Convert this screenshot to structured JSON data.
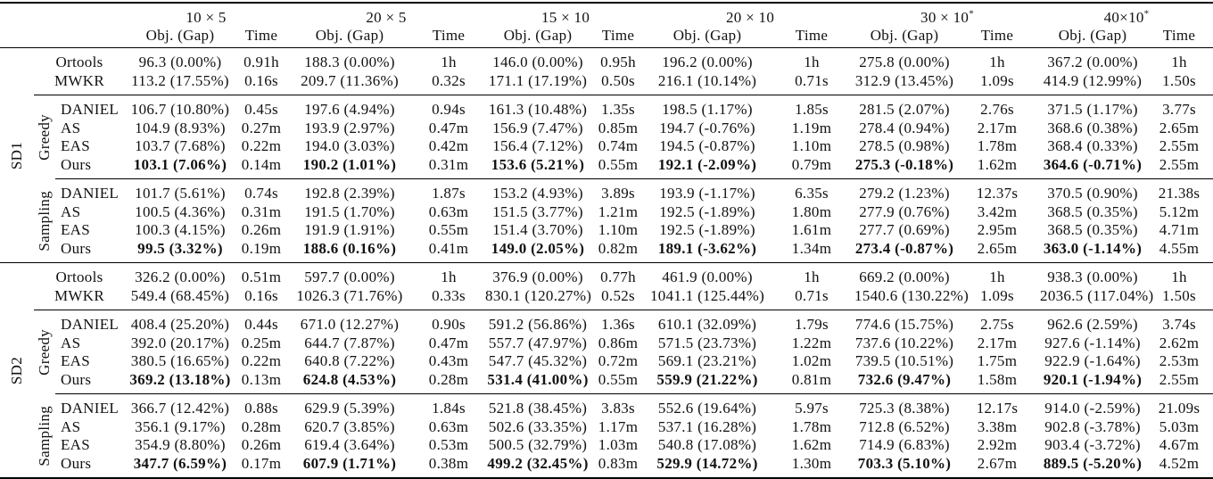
{
  "header": {
    "sizes": [
      {
        "label": "10 × 5",
        "star": ""
      },
      {
        "label": "20 × 5",
        "star": ""
      },
      {
        "label": "15 × 10",
        "star": ""
      },
      {
        "label": "20 × 10",
        "star": ""
      },
      {
        "label": "30 × 10",
        "star": "*"
      },
      {
        "label": "40×10",
        "star": "*"
      }
    ],
    "obj_label": "Obj. (Gap)",
    "time_label": "Time"
  },
  "groups_labels": {
    "greedy": "Greedy",
    "sampling": "Sampling"
  },
  "sections": [
    {
      "label": "SD1",
      "baselines": [
        {
          "method": "Ortools",
          "cells": [
            [
              "96.3 (0.00%)",
              "0.91h"
            ],
            [
              "188.3 (0.00%)",
              "1h"
            ],
            [
              "146.0 (0.00%)",
              "0.95h"
            ],
            [
              "196.2 (0.00%)",
              "1h"
            ],
            [
              "275.8 (0.00%)",
              "1h"
            ],
            [
              "367.2 (0.00%)",
              "1h"
            ]
          ]
        },
        {
          "method": "MWKR",
          "cells": [
            [
              "113.2 (17.55%)",
              "0.16s"
            ],
            [
              "209.7 (11.36%)",
              "0.32s"
            ],
            [
              "171.1 (17.19%)",
              "0.50s"
            ],
            [
              "216.1 (10.14%)",
              "0.71s"
            ],
            [
              "312.9 (13.45%)",
              "1.09s"
            ],
            [
              "414.9 (12.99%)",
              "1.50s"
            ]
          ]
        }
      ],
      "greedy": [
        {
          "method": "DANIEL",
          "cells": [
            [
              "106.7 (10.80%)",
              "0.45s"
            ],
            [
              "197.6 (4.94%)",
              "0.94s"
            ],
            [
              "161.3 (10.48%)",
              "1.35s"
            ],
            [
              "198.5 (1.17%)",
              "1.85s"
            ],
            [
              "281.5 (2.07%)",
              "2.76s"
            ],
            [
              "371.5 (1.17%)",
              "3.77s"
            ]
          ]
        },
        {
          "method": "AS",
          "cells": [
            [
              "104.9 (8.93%)",
              "0.27m"
            ],
            [
              "193.9 (2.97%)",
              "0.47m"
            ],
            [
              "156.9 (7.47%)",
              "0.85m"
            ],
            [
              "194.7 (-0.76%)",
              "1.19m"
            ],
            [
              "278.4 (0.94%)",
              "2.17m"
            ],
            [
              "368.6 (0.38%)",
              "2.65m"
            ]
          ]
        },
        {
          "method": "EAS",
          "cells": [
            [
              "103.7 (7.68%)",
              "0.22m"
            ],
            [
              "194.0 (3.03%)",
              "0.42m"
            ],
            [
              "156.4 (7.12%)",
              "0.74m"
            ],
            [
              "194.5 (-0.87%)",
              "1.10m"
            ],
            [
              "278.5 (0.98%)",
              "1.78m"
            ],
            [
              "368.4 (0.33%)",
              "2.55m"
            ]
          ]
        },
        {
          "method": "Ours",
          "bold": true,
          "cells": [
            [
              "103.1 (7.06%)",
              "0.14m"
            ],
            [
              "190.2 (1.01%)",
              "0.31m"
            ],
            [
              "153.6 (5.21%)",
              "0.55m"
            ],
            [
              "192.1 (-2.09%)",
              "0.79m"
            ],
            [
              "275.3 (-0.18%)",
              "1.62m"
            ],
            [
              "364.6 (-0.71%)",
              "2.55m"
            ]
          ]
        }
      ],
      "sampling": [
        {
          "method": "DANIEL",
          "cells": [
            [
              "101.7 (5.61%)",
              "0.74s"
            ],
            [
              "192.8 (2.39%)",
              "1.87s"
            ],
            [
              "153.2 (4.93%)",
              "3.89s"
            ],
            [
              "193.9 (-1.17%)",
              "6.35s"
            ],
            [
              "279.2 (1.23%)",
              "12.37s"
            ],
            [
              "370.5 (0.90%)",
              "21.38s"
            ]
          ]
        },
        {
          "method": "AS",
          "cells": [
            [
              "100.5 (4.36%)",
              "0.31m"
            ],
            [
              "191.5 (1.70%)",
              "0.63m"
            ],
            [
              "151.5 (3.77%)",
              "1.21m"
            ],
            [
              "192.5 (-1.89%)",
              "1.80m"
            ],
            [
              "277.9 (0.76%)",
              "3.42m"
            ],
            [
              "368.5 (0.35%)",
              "5.12m"
            ]
          ]
        },
        {
          "method": "EAS",
          "cells": [
            [
              "100.3 (4.15%)",
              "0.26m"
            ],
            [
              "191.9 (1.91%)",
              "0.55m"
            ],
            [
              "151.4 (3.70%)",
              "1.10m"
            ],
            [
              "192.5 (-1.89%)",
              "1.61m"
            ],
            [
              "277.7 (0.69%)",
              "2.95m"
            ],
            [
              "368.5 (0.35%)",
              "4.71m"
            ]
          ]
        },
        {
          "method": "Ours",
          "bold": true,
          "cells": [
            [
              "99.5 (3.32%)",
              "0.19m"
            ],
            [
              "188.6 (0.16%)",
              "0.41m"
            ],
            [
              "149.0 (2.05%)",
              "0.82m"
            ],
            [
              "189.1 (-3.62%)",
              "1.34m"
            ],
            [
              "273.4 (-0.87%)",
              "2.65m"
            ],
            [
              "363.0 (-1.14%)",
              "4.55m"
            ]
          ]
        }
      ]
    },
    {
      "label": "SD2",
      "baselines": [
        {
          "method": "Ortools",
          "cells": [
            [
              "326.2 (0.00%)",
              "0.51m"
            ],
            [
              "597.7 (0.00%)",
              "1h"
            ],
            [
              "376.9 (0.00%)",
              "0.77h"
            ],
            [
              "461.9 (0.00%)",
              "1h"
            ],
            [
              "669.2 (0.00%)",
              "1h"
            ],
            [
              "938.3 (0.00%)",
              "1h"
            ]
          ]
        },
        {
          "method": "MWKR",
          "cells": [
            [
              "549.4 (68.45%)",
              "0.16s"
            ],
            [
              "1026.3 (71.76%)",
              "0.33s"
            ],
            [
              "830.1 (120.27%)",
              "0.52s"
            ],
            [
              "1041.1 (125.44%)",
              "0.71s"
            ],
            [
              "1540.6 (130.22%)",
              "1.09s"
            ],
            [
              "2036.5 (117.04%)",
              "1.50s"
            ]
          ]
        }
      ],
      "greedy": [
        {
          "method": "DANIEL",
          "cells": [
            [
              "408.4 (25.20%)",
              "0.44s"
            ],
            [
              "671.0 (12.27%)",
              "0.90s"
            ],
            [
              "591.2 (56.86%)",
              "1.36s"
            ],
            [
              "610.1 (32.09%)",
              "1.79s"
            ],
            [
              "774.6 (15.75%)",
              "2.75s"
            ],
            [
              "962.6 (2.59%)",
              "3.74s"
            ]
          ]
        },
        {
          "method": "AS",
          "cells": [
            [
              "392.0 (20.17%)",
              "0.25m"
            ],
            [
              "644.7 (7.87%)",
              "0.47m"
            ],
            [
              "557.7 (47.97%)",
              "0.86m"
            ],
            [
              "571.5 (23.73%)",
              "1.22m"
            ],
            [
              "737.6 (10.22%)",
              "2.17m"
            ],
            [
              "927.6 (-1.14%)",
              "2.62m"
            ]
          ]
        },
        {
          "method": "EAS",
          "cells": [
            [
              "380.5 (16.65%)",
              "0.22m"
            ],
            [
              "640.8 (7.22%)",
              "0.43m"
            ],
            [
              "547.7 (45.32%)",
              "0.72m"
            ],
            [
              "569.1 (23.21%)",
              "1.02m"
            ],
            [
              "739.5 (10.51%)",
              "1.75m"
            ],
            [
              "922.9 (-1.64%)",
              "2.53m"
            ]
          ]
        },
        {
          "method": "Ours",
          "bold": true,
          "cells": [
            [
              "369.2 (13.18%)",
              "0.13m"
            ],
            [
              "624.8 (4.53%)",
              "0.28m"
            ],
            [
              "531.4 (41.00%)",
              "0.55m"
            ],
            [
              "559.9 (21.22%)",
              "0.81m"
            ],
            [
              "732.6 (9.47%)",
              "1.58m"
            ],
            [
              "920.1 (-1.94%)",
              "2.55m"
            ]
          ]
        }
      ],
      "sampling": [
        {
          "method": "DANIEL",
          "cells": [
            [
              "366.7 (12.42%)",
              "0.88s"
            ],
            [
              "629.9 (5.39%)",
              "1.84s"
            ],
            [
              "521.8 (38.45%)",
              "3.83s"
            ],
            [
              "552.6 (19.64%)",
              "5.97s"
            ],
            [
              "725.3 (8.38%)",
              "12.17s"
            ],
            [
              "914.0 (-2.59%)",
              "21.09s"
            ]
          ]
        },
        {
          "method": "AS",
          "cells": [
            [
              "356.1 (9.17%)",
              "0.28m"
            ],
            [
              "620.7 (3.85%)",
              "0.63m"
            ],
            [
              "502.6 (33.35%)",
              "1.17m"
            ],
            [
              "537.1 (16.28%)",
              "1.78m"
            ],
            [
              "712.8 (6.52%)",
              "3.38m"
            ],
            [
              "902.8 (-3.78%)",
              "5.03m"
            ]
          ]
        },
        {
          "method": "EAS",
          "cells": [
            [
              "354.9 (8.80%)",
              "0.26m"
            ],
            [
              "619.4 (3.64%)",
              "0.53m"
            ],
            [
              "500.5 (32.79%)",
              "1.03m"
            ],
            [
              "540.8 (17.08%)",
              "1.62m"
            ],
            [
              "714.9 (6.83%)",
              "2.92m"
            ],
            [
              "903.4 (-3.72%)",
              "4.67m"
            ]
          ]
        },
        {
          "method": "Ours",
          "bold": true,
          "cells": [
            [
              "347.7 (6.59%)",
              "0.17m"
            ],
            [
              "607.9 (1.71%)",
              "0.38m"
            ],
            [
              "499.2 (32.45%)",
              "0.83m"
            ],
            [
              "529.9 (14.72%)",
              "1.30m"
            ],
            [
              "703.3 (5.10%)",
              "2.67m"
            ],
            [
              "889.5 (-5.20%)",
              "4.52m"
            ]
          ]
        }
      ]
    }
  ]
}
